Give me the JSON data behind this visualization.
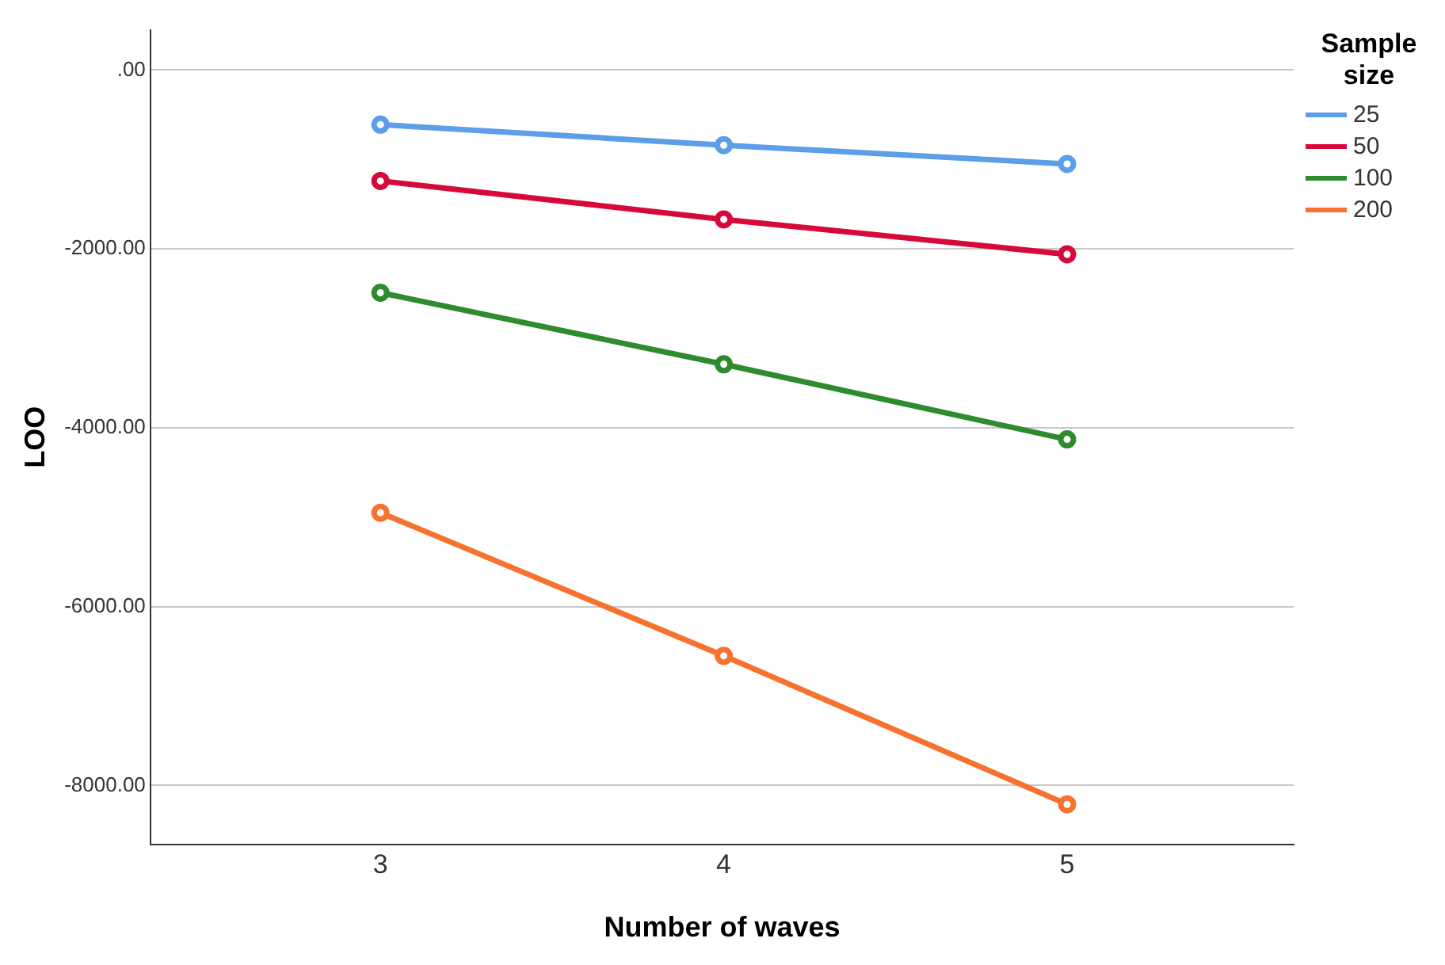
{
  "chart_data": {
    "type": "line",
    "xlabel": "Number of waves",
    "ylabel": "LOO",
    "legend_title": "Sample size",
    "legend": "top right",
    "grid": "y",
    "marker": "circle",
    "x": [
      3,
      4,
      5
    ],
    "xlim": [
      2.33,
      5.66
    ],
    "xticks": [
      3,
      4,
      5
    ],
    "ylim": [
      -8660,
      450
    ],
    "yticks": [
      {
        "value": 0,
        "label": ".00"
      },
      {
        "value": -2000,
        "label": "-2000.00"
      },
      {
        "value": -4000,
        "label": "-4000.00"
      },
      {
        "value": -6000,
        "label": "-6000.00"
      },
      {
        "value": -8000,
        "label": "-8000.00"
      }
    ],
    "series": [
      {
        "name": "25",
        "color": "#5d9ee8",
        "values": [
          -610,
          -840,
          -1050
        ]
      },
      {
        "name": "50",
        "color": "#d6093a",
        "values": [
          -1240,
          -1670,
          -2060
        ]
      },
      {
        "name": "100",
        "color": "#2e8b2e",
        "values": [
          -2490,
          -3290,
          -4130
        ]
      },
      {
        "name": "200",
        "color": "#f57230",
        "values": [
          -4950,
          -6550,
          -8210
        ]
      }
    ]
  }
}
